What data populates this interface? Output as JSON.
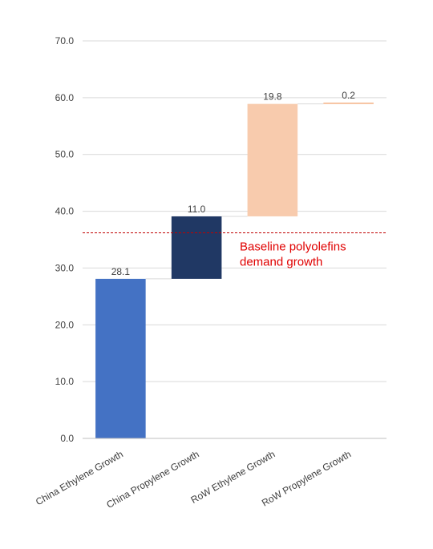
{
  "chart_data": {
    "type": "bar",
    "subtype": "waterfall",
    "title": "",
    "xlabel": "",
    "ylabel": "",
    "ylim": [
      0,
      70
    ],
    "ytick_values": [
      0,
      10,
      20,
      30,
      40,
      50,
      60,
      70
    ],
    "ytick_labels": [
      "0.0",
      "10.0",
      "20.0",
      "30.0",
      "40.0",
      "50.0",
      "60.0",
      "70.0"
    ],
    "grid": true,
    "categories": [
      "China Ethylene Growth",
      "China Propylene Growth",
      "RoW Ethylene Growth",
      "RoW Propylene Growth"
    ],
    "values": [
      28.1,
      11.0,
      19.8,
      0.2
    ],
    "bases": [
      0,
      28.1,
      39.1,
      58.9
    ],
    "data_labels": [
      "28.1",
      "11.0",
      "19.8",
      "0.2"
    ],
    "colors": [
      "#4472c4",
      "#203864",
      "#f8cbad",
      "#f4b183"
    ],
    "reference_line": {
      "value": 36.2,
      "style": "dashed",
      "color": "#c00000",
      "label_lines": [
        "Baseline polyolefins",
        "demand growth"
      ],
      "label_color": "#e00000"
    }
  }
}
